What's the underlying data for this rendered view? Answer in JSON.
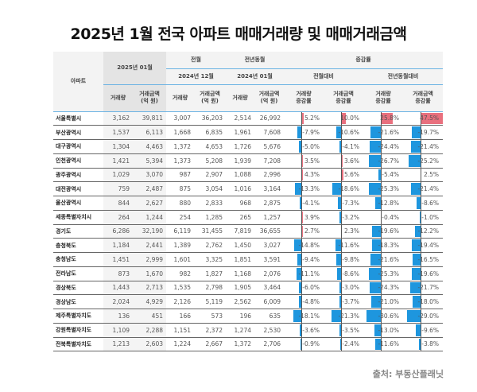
{
  "title": "2025년 1월 전국 아파트 매매거래량 및 매매거래금액",
  "header": {
    "region": "아파트",
    "current": "2025년 01월",
    "prev_month": "전월",
    "prev_month_date": "2024년 12월",
    "prev_year": "전년동월",
    "prev_year_date": "2024년 01월",
    "change": "증감률",
    "vs_prev_month": "전월대비",
    "vs_prev_year": "전년동월대비",
    "volume": "거래량",
    "amount": "거래금액\n(억 원)",
    "volume_change": "거래량\n증감률",
    "amount_change": "거래금액\n증감률"
  },
  "colors": {
    "positive": "#e9707e",
    "negative": "#1e96de",
    "header_line": "#6bb3e3"
  },
  "rows": [
    [
      "서울특별시",
      "3,162",
      "39,811",
      "3,007",
      "36,203",
      "2,514",
      "26,992",
      "5.2%",
      "10.0%",
      "25.8%",
      "47.5%"
    ],
    [
      "부산광역시",
      "1,537",
      "6,113",
      "1,668",
      "6,835",
      "1,961",
      "7,608",
      "-7.9%",
      "-10.6%",
      "-21.6%",
      "-19.7%"
    ],
    [
      "대구광역시",
      "1,304",
      "4,463",
      "1,372",
      "4,653",
      "1,726",
      "5,676",
      "-5.0%",
      "-4.1%",
      "-24.4%",
      "-21.4%"
    ],
    [
      "인천광역시",
      "1,421",
      "5,394",
      "1,373",
      "5,208",
      "1,939",
      "7,208",
      "3.5%",
      "3.6%",
      "-26.7%",
      "-25.2%"
    ],
    [
      "광주광역시",
      "1,029",
      "3,070",
      "987",
      "2,907",
      "1,088",
      "2,996",
      "4.3%",
      "5.6%",
      "-5.4%",
      "2.5%"
    ],
    [
      "대전광역시",
      "759",
      "2,487",
      "875",
      "3,054",
      "1,016",
      "3,164",
      "-13.3%",
      "-18.6%",
      "-25.3%",
      "-21.4%"
    ],
    [
      "울산광역시",
      "844",
      "2,627",
      "880",
      "2,833",
      "968",
      "2,875",
      "-4.1%",
      "-7.3%",
      "-12.8%",
      "-8.6%"
    ],
    [
      "세종특별자치시",
      "264",
      "1,244",
      "254",
      "1,285",
      "265",
      "1,257",
      "3.9%",
      "-3.2%",
      "-0.4%",
      "-1.0%"
    ],
    [
      "경기도",
      "6,286",
      "32,190",
      "6,119",
      "31,455",
      "7,819",
      "36,655",
      "2.7%",
      "2.3%",
      "-19.6%",
      "-12.2%"
    ],
    [
      "충청북도",
      "1,184",
      "2,441",
      "1,389",
      "2,762",
      "1,450",
      "3,027",
      "-14.8%",
      "-11.6%",
      "-18.3%",
      "-19.4%"
    ],
    [
      "충청남도",
      "1,451",
      "2,999",
      "1,601",
      "3,325",
      "1,851",
      "3,591",
      "-9.4%",
      "-9.8%",
      "-21.6%",
      "-16.5%"
    ],
    [
      "전라남도",
      "873",
      "1,670",
      "982",
      "1,827",
      "1,168",
      "2,076",
      "-11.1%",
      "-8.6%",
      "-25.3%",
      "-19.6%"
    ],
    [
      "경상북도",
      "1,443",
      "2,713",
      "1,535",
      "2,798",
      "1,905",
      "3,464",
      "-6.0%",
      "-3.0%",
      "-24.3%",
      "-21.7%"
    ],
    [
      "경상남도",
      "2,024",
      "4,929",
      "2,126",
      "5,119",
      "2,562",
      "6,009",
      "-4.8%",
      "-3.7%",
      "-21.0%",
      "-18.0%"
    ],
    [
      "제주특별자치도",
      "136",
      "451",
      "166",
      "573",
      "196",
      "635",
      "-18.1%",
      "-21.3%",
      "-30.6%",
      "-29.0%"
    ],
    [
      "강원특별자치도",
      "1,109",
      "2,288",
      "1,151",
      "2,372",
      "1,274",
      "2,530",
      "-3.6%",
      "-3.5%",
      "-13.0%",
      "-9.6%"
    ],
    [
      "전북특별자치도",
      "1,213",
      "2,603",
      "1,224",
      "2,667",
      "1,372",
      "2,706",
      "-0.9%",
      "-2.4%",
      "-11.6%",
      "-3.8%"
    ]
  ],
  "source": "출처: 부동산플래닛"
}
